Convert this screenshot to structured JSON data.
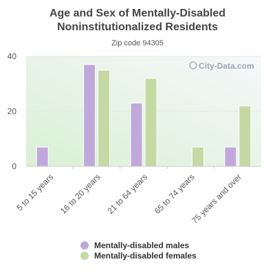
{
  "chart_data": {
    "type": "bar",
    "title_lines": [
      "Age and Sex of Mentally-Disabled",
      "Noninstitutionalized Residents"
    ],
    "subtitle": "Zip code 94305",
    "categories": [
      "5 to 15 years",
      "16 to 20 years",
      "21 to 64 years",
      "65 to 74 years",
      "75 years and over"
    ],
    "series": [
      {
        "name": "Mentally-disabled males",
        "color": "#c0a9da",
        "values": [
          7,
          37,
          23,
          0,
          7
        ]
      },
      {
        "name": "Mentally-disabled females",
        "color": "#c5d9a5",
        "values": [
          0,
          35,
          32,
          7,
          22
        ]
      }
    ],
    "ylim": [
      0,
      40
    ],
    "yticks": [
      0,
      20,
      40
    ],
    "xlabel": "",
    "ylabel": "",
    "grid": true,
    "legend_position": "bottom",
    "watermark": "City-Data.com"
  }
}
